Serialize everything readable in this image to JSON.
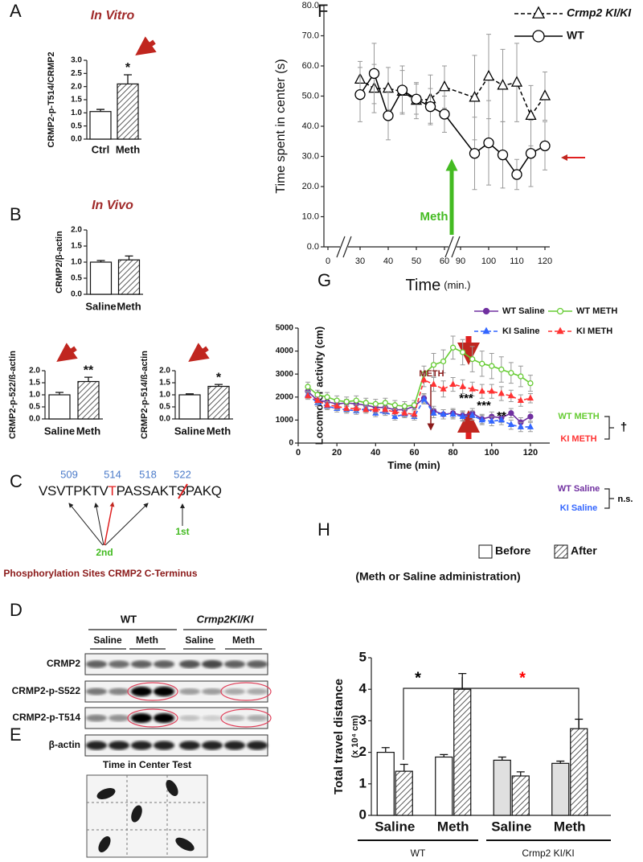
{
  "chart_data": [
    {
      "panel": "A",
      "type": "bar",
      "title": "In Vitro",
      "ylabel": "CRMP2-p-T514/CRMP2",
      "categories": [
        "Ctrl",
        "Meth"
      ],
      "values": [
        1.05,
        2.1
      ],
      "errors": [
        0.08,
        0.35
      ],
      "colors": [
        "#ffffff",
        "#ffffff"
      ],
      "hatch": [
        false,
        true
      ],
      "ylim": [
        0,
        3
      ],
      "yticks": [
        {
          "value": 0,
          "label": "0.0"
        },
        {
          "value": 0.5,
          "label": "0.5"
        },
        {
          "value": 1,
          "label": "1.0"
        },
        {
          "value": 1.5,
          "label": "1.5"
        },
        {
          "value": 2,
          "label": "2.0"
        },
        {
          "value": 2.5,
          "label": "2.5"
        },
        {
          "value": 3,
          "label": "3.0"
        }
      ],
      "annotations": [
        "*"
      ]
    },
    {
      "panel": "B",
      "type": "bar",
      "title": "In Vivo",
      "ylabel": "CRMP2/β-actin",
      "categories": [
        "Saline",
        "Meth"
      ],
      "values": [
        1.0,
        1.07
      ],
      "errors": [
        0.05,
        0.12
      ],
      "colors": [
        "#ffffff",
        "#ffffff"
      ],
      "hatch": [
        false,
        true
      ],
      "ylim": [
        0,
        2
      ],
      "yticks": [
        {
          "value": 0,
          "label": "0.0"
        },
        {
          "value": 0.5,
          "label": "0.5"
        },
        {
          "value": 1,
          "label": "1.0"
        },
        {
          "value": 1.5,
          "label": "1.5"
        },
        {
          "value": 2,
          "label": "2.0"
        }
      ]
    },
    {
      "type": "bar",
      "ylabel": "CRMP2-p-522/ß-actin",
      "categories": [
        "Saline",
        "Meth"
      ],
      "values": [
        1.0,
        1.55
      ],
      "errors": [
        0.1,
        0.18
      ],
      "colors": [
        "#ffffff",
        "#ffffff"
      ],
      "hatch": [
        false,
        true
      ],
      "ylim": [
        0,
        2
      ],
      "yticks": [
        {
          "value": 0,
          "label": "0.0"
        },
        {
          "value": 0.5,
          "label": "0.5"
        },
        {
          "value": 1,
          "label": "1.0"
        },
        {
          "value": 1.5,
          "label": "1.5"
        },
        {
          "value": 2,
          "label": "2.0"
        }
      ],
      "annotations": [
        "**"
      ]
    },
    {
      "type": "bar",
      "ylabel": "CRMP2-p-514/ß-actin",
      "categories": [
        "Saline",
        "Meth"
      ],
      "values": [
        1.0,
        1.35
      ],
      "errors": [
        0.04,
        0.08
      ],
      "colors": [
        "#ffffff",
        "#ffffff"
      ],
      "hatch": [
        false,
        true
      ],
      "ylim": [
        0,
        2
      ],
      "yticks": [
        {
          "value": 0,
          "label": "0.0"
        },
        {
          "value": 0.5,
          "label": "0.5"
        },
        {
          "value": 1,
          "label": "1.0"
        },
        {
          "value": 1.5,
          "label": "1.5"
        },
        {
          "value": 2,
          "label": "2.0"
        }
      ],
      "annotations": [
        "*"
      ]
    },
    {
      "panel": "F",
      "type": "line",
      "ylabel": "Time spent in center (s)",
      "xlabel": "Time",
      "xlabel_unit": "(min.)",
      "x": [
        30,
        35,
        40,
        45,
        50,
        55,
        60,
        95,
        100,
        105,
        110,
        115,
        120
      ],
      "xlim": [
        0,
        120
      ],
      "x_breaks": [
        [
          0,
          30
        ],
        [
          60,
          90
        ]
      ],
      "xticks": [
        0,
        30,
        40,
        50,
        60,
        90,
        100,
        110,
        120
      ],
      "ylim": [
        0,
        80
      ],
      "yticks": [
        {
          "value": 0,
          "label": "0.0"
        },
        {
          "value": 10,
          "label": "10.0"
        },
        {
          "value": 20,
          "label": "20.0"
        },
        {
          "value": 30,
          "label": "30.0"
        },
        {
          "value": 40,
          "label": "40.0"
        },
        {
          "value": 50,
          "label": "50.0"
        },
        {
          "value": 60,
          "label": "60.0"
        },
        {
          "value": 70,
          "label": "70.0"
        },
        {
          "value": 80,
          "label": "80.0"
        }
      ],
      "series": [
        {
          "name": "Crmp2 KI/KI",
          "color": "#000000",
          "dash": true,
          "marker": "triangle",
          "values": [
            55.5,
            52.5,
            52.5,
            51.5,
            48.5,
            49,
            53,
            49.5,
            56.5,
            53.5,
            54.5,
            43.5,
            50
          ],
          "errors": [
            6,
            8,
            7,
            7,
            6,
            8,
            7,
            14,
            14,
            12,
            13,
            10,
            8
          ]
        },
        {
          "name": "WT",
          "color": "#000000",
          "dash": false,
          "marker": "circle",
          "values": [
            50.5,
            57.5,
            43.5,
            52,
            49,
            46.5,
            44,
            31,
            34.5,
            30.5,
            24,
            31,
            33.5
          ],
          "errors": [
            9,
            10,
            8,
            8,
            5,
            6,
            6,
            12,
            14,
            11,
            5,
            11,
            8
          ]
        }
      ],
      "annotations": [
        "Meth"
      ],
      "annotation_colors": [
        "#44bb22"
      ]
    },
    {
      "panel": "G",
      "type": "line",
      "ylabel": "Locomotor activity (cm)",
      "xlabel": "Time (min)",
      "x": [
        5,
        10,
        15,
        20,
        25,
        30,
        35,
        40,
        45,
        50,
        55,
        60,
        65,
        70,
        75,
        80,
        85,
        90,
        95,
        100,
        105,
        110,
        115,
        120
      ],
      "xlim": [
        0,
        130
      ],
      "xticks": [
        0,
        20,
        40,
        60,
        80,
        100,
        120
      ],
      "ylim": [
        0,
        5000
      ],
      "yticks": [
        0,
        1000,
        2000,
        3000,
        4000,
        5000
      ],
      "series": [
        {
          "name": "WT Saline",
          "color": "#7030a0",
          "dash": false,
          "marker": "circle-filled",
          "values": [
            2250,
            1850,
            1800,
            1700,
            1750,
            1700,
            1650,
            1550,
            1550,
            1450,
            1450,
            1600,
            1950,
            1400,
            1250,
            1300,
            1200,
            1300,
            1050,
            1150,
            1100,
            1300,
            900,
            1150
          ],
          "errors": [
            150,
            150,
            150,
            150,
            150,
            150,
            150,
            150,
            150,
            150,
            150,
            150,
            200,
            200,
            200,
            200,
            200,
            200,
            200,
            200,
            200,
            200,
            200,
            200
          ]
        },
        {
          "name": "WT METH",
          "color": "#66cc33",
          "dash": false,
          "marker": "circle",
          "values": [
            2450,
            2100,
            2000,
            1850,
            1800,
            1850,
            1750,
            1700,
            1750,
            1650,
            1600,
            1650,
            3000,
            3400,
            3550,
            4150,
            3950,
            3650,
            3450,
            3350,
            3200,
            3050,
            2900,
            2600
          ],
          "errors": [
            200,
            200,
            200,
            200,
            200,
            200,
            200,
            200,
            200,
            200,
            200,
            200,
            350,
            500,
            500,
            500,
            550,
            550,
            550,
            550,
            550,
            450,
            450,
            350
          ]
        },
        {
          "name": "KI Saline",
          "color": "#3366ff",
          "dash": true,
          "marker": "triangle-filled",
          "values": [
            2100,
            1750,
            1600,
            1500,
            1450,
            1400,
            1500,
            1300,
            1350,
            1150,
            1250,
            1150,
            1900,
            1300,
            1250,
            1250,
            1150,
            1200,
            1000,
            950,
            1000,
            800,
            700,
            700
          ],
          "errors": [
            150,
            150,
            150,
            150,
            150,
            150,
            150,
            150,
            150,
            150,
            150,
            150,
            200,
            200,
            200,
            200,
            200,
            200,
            200,
            200,
            200,
            200,
            200,
            200
          ]
        },
        {
          "name": "KI METH",
          "color": "#ff3333",
          "dash": true,
          "marker": "triangle-filled",
          "values": [
            2050,
            1850,
            1650,
            1600,
            1500,
            1500,
            1450,
            1450,
            1450,
            1350,
            1300,
            1250,
            2750,
            2550,
            2350,
            2550,
            2450,
            2350,
            2250,
            2250,
            2150,
            2050,
            1850,
            1950
          ],
          "errors": [
            150,
            150,
            150,
            150,
            150,
            150,
            150,
            150,
            150,
            150,
            150,
            150,
            300,
            300,
            350,
            300,
            300,
            300,
            300,
            300,
            300,
            250,
            250,
            200
          ]
        }
      ],
      "annotations": [
        "METH",
        "***",
        "***",
        "**",
        "WT METH",
        "KI METH",
        "WT Saline",
        "KI Saline",
        "†",
        "n.s."
      ],
      "annotation_colors": [
        "#8b1a1a",
        "#000000",
        "#000000",
        "#000000",
        "#66cc33",
        "#ff3333",
        "#7030a0",
        "#3366ff",
        "#000000",
        "#000000"
      ]
    },
    {
      "panel": "H",
      "type": "bar",
      "ylabel": "Total travel distance",
      "ylabel_unit": "(x 10⁴ cm)",
      "subtitle": "(Meth or Saline administration)",
      "categories": [
        "Saline",
        "Meth",
        "Saline",
        "Meth"
      ],
      "groups": [
        "WT",
        "Crmp2 KI/KI"
      ],
      "ylim": [
        0,
        5
      ],
      "yticks": [
        0,
        1,
        2,
        3,
        4,
        5
      ],
      "series": [
        {
          "name": "Before",
          "colors": [
            "#ffffff",
            "#ffffff",
            "#e0e0e0",
            "#e0e0e0"
          ],
          "hatch": false,
          "values": [
            2.0,
            1.85,
            1.75,
            1.65
          ],
          "errors": [
            0.15,
            0.08,
            0.1,
            0.07
          ]
        },
        {
          "name": "After",
          "colors": [
            "#ffffff",
            "#ffffff",
            "#ffffff",
            "#ffffff"
          ],
          "hatch": true,
          "values": [
            1.4,
            4.0,
            1.25,
            2.75
          ],
          "errors": [
            0.22,
            0.5,
            0.13,
            0.3
          ]
        }
      ],
      "annotations": [
        "*",
        "*"
      ],
      "annotation_colors": [
        "#000000",
        "#ff0000"
      ]
    }
  ],
  "sequence": {
    "panel": "C",
    "positions": [
      509,
      514,
      518,
      522
    ],
    "residues": [
      "VSVTPKTV",
      "T",
      "PASSAKT",
      "S",
      "PAKQ"
    ],
    "sites": [
      "2nd",
      "1st"
    ],
    "caption": "Phosphorylation Sites CRMP2 C-Terminus"
  },
  "blot": {
    "panel": "D",
    "groups": [
      "WT",
      "Crmp2KI/KI"
    ],
    "lanes": [
      "Saline",
      "Meth",
      "Saline",
      "Meth"
    ],
    "rows": [
      "CRMP2",
      "CRMP2-p-S522",
      "CRMP2-p-T514",
      "β-actin"
    ]
  },
  "center_test": {
    "panel": "E",
    "title": "Time in Center Test"
  }
}
